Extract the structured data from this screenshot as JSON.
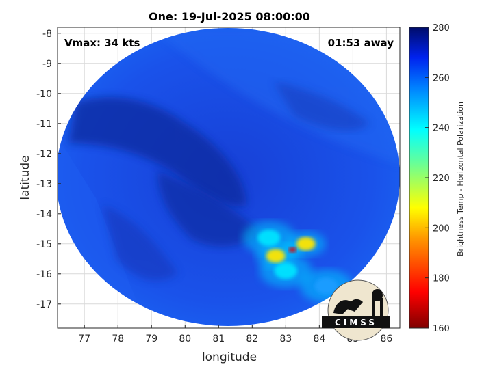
{
  "chart_data": {
    "type": "heatmap",
    "title": "One: 19-Jul-2025 08:00:00",
    "xlabel": "longitude",
    "ylabel": "latitude",
    "xlim": [
      76.2,
      86.4
    ],
    "ylim": [
      -17.8,
      -7.8
    ],
    "x_ticks": [
      77,
      78,
      79,
      80,
      81,
      82,
      83,
      84,
      85,
      86
    ],
    "y_ticks": [
      -8,
      -9,
      -10,
      -11,
      -12,
      -13,
      -14,
      -15,
      -16,
      -17
    ],
    "grid": true,
    "annotations": {
      "vmax": "Vmax: 34 kts",
      "time_away": "01:53 away"
    },
    "colorbar": {
      "label": "Brightness Temp - Horizontal Polarization",
      "range": [
        160,
        280
      ],
      "ticks": [
        160,
        180,
        200,
        220,
        240,
        260,
        280
      ]
    },
    "features": [
      {
        "lon": 83.2,
        "lat": -15.2,
        "value": 185
      },
      {
        "lon": 82.7,
        "lat": -15.4,
        "value": 210
      },
      {
        "lon": 83.6,
        "lat": -15.0,
        "value": 215
      },
      {
        "lon": 82.5,
        "lat": -14.8,
        "value": 230
      },
      {
        "lon": 83.0,
        "lat": -15.9,
        "value": 228
      },
      {
        "lon": 84.2,
        "lat": -16.4,
        "value": 238
      }
    ]
  },
  "logo": {
    "text": "CIMSS"
  },
  "colors": {
    "background_warm": "#1c52e6",
    "cold_cloud": "#0d1f8f",
    "cyan": "#00d8ff",
    "yellow": "#ffe000",
    "red": "#d00000"
  }
}
